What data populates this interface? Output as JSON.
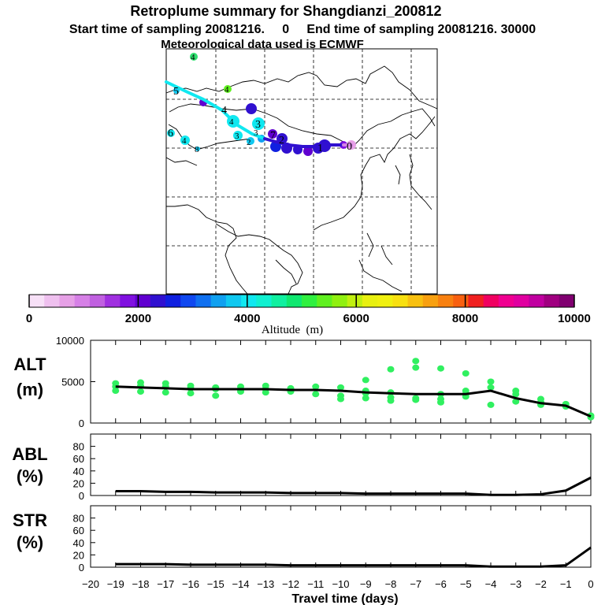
{
  "header": {
    "title": "Retroplume summary for Shangdianzi_200812",
    "sampling_line": "Start time of sampling 20081216.     0     End time of sampling 20081216. 30000",
    "met_line": "Meteorological data used is ECMWF"
  },
  "colorbar": {
    "label": "Altitude  (m)",
    "ticks": [
      "0",
      "2000",
      "4000",
      "6000",
      "8000",
      "10000"
    ],
    "range": [
      0,
      10000
    ],
    "colors": [
      "#f7e0f7",
      "#efc0ef",
      "#e6a0e6",
      "#d680e6",
      "#c060e0",
      "#a030e0",
      "#8010e0",
      "#6000d0",
      "#3010d0",
      "#1020e0",
      "#1048f0",
      "#1070f0",
      "#10a0f0",
      "#10c8f0",
      "#10e8f0",
      "#10f0d0",
      "#10f0a0",
      "#10e870",
      "#30f040",
      "#60f020",
      "#90f010",
      "#c0f010",
      "#e8f010",
      "#f0f010",
      "#f8e010",
      "#f8c010",
      "#f8a010",
      "#f88010",
      "#f86010",
      "#f02020",
      "#f00060",
      "#f00090",
      "#e000a0",
      "#c000a0",
      "#a00080",
      "#800070"
    ]
  },
  "map": {
    "trajectory_labels": [
      "0",
      "1",
      "2",
      "3",
      "4",
      "5",
      "6",
      "7",
      "8"
    ]
  },
  "chart_data": [
    {
      "type": "scatter",
      "name": "ALT",
      "ylabel": "ALT\n(m)",
      "ylabel_lines": [
        "ALT",
        "(m)"
      ],
      "ylim": [
        0,
        10000
      ],
      "yticks": [
        "10000",
        "5000",
        "0"
      ],
      "ytick_values": [
        10000,
        5000,
        0
      ],
      "xlim": [
        -20,
        0
      ],
      "mean_line": {
        "x": [
          -19,
          -18,
          -17,
          -16,
          -15,
          -14,
          -13,
          -12,
          -11,
          -10,
          -9,
          -8,
          -7,
          -6,
          -5,
          -4,
          -3,
          -2,
          -1,
          0
        ],
        "y": [
          4400,
          4300,
          4200,
          4100,
          4100,
          4100,
          4100,
          4000,
          4000,
          3900,
          3700,
          3600,
          3500,
          3500,
          3500,
          3900,
          3000,
          2400,
          2100,
          800
        ]
      },
      "points": {
        "x": [
          -19,
          -19,
          -19,
          -18,
          -18,
          -18,
          -17,
          -17,
          -17,
          -16,
          -16,
          -16,
          -15,
          -15,
          -15,
          -14,
          -14,
          -14,
          -13,
          -13,
          -13,
          -12,
          -12,
          -11,
          -11,
          -10,
          -10,
          -10,
          -9,
          -9,
          -9,
          -9,
          -8,
          -8,
          -8,
          -8,
          -7,
          -7,
          -7,
          -7,
          -6,
          -6,
          -6,
          -6,
          -5,
          -5,
          -5,
          -5,
          -4,
          -4,
          -4,
          -3,
          -3,
          -3,
          -2,
          -2,
          -2,
          -1,
          -1,
          0,
          0
        ],
        "y": [
          4800,
          4400,
          3900,
          4900,
          4500,
          3800,
          4800,
          4400,
          3700,
          4500,
          4200,
          3600,
          4300,
          4100,
          3300,
          4400,
          4000,
          3800,
          4500,
          4100,
          3700,
          4200,
          3800,
          4400,
          3500,
          4300,
          3300,
          2900,
          5200,
          3900,
          3600,
          3000,
          6500,
          3700,
          3100,
          2700,
          7500,
          6700,
          3000,
          2800,
          6600,
          3500,
          2900,
          2500,
          6000,
          3900,
          3500,
          3200,
          5000,
          4300,
          2200,
          3900,
          3500,
          2600,
          2900,
          2500,
          2200,
          2300,
          2000,
          900,
          700
        ]
      }
    },
    {
      "type": "line",
      "name": "ABL",
      "ylabel": "ABL\n(%)",
      "ylabel_lines": [
        "ABL",
        "(%)"
      ],
      "ylim": [
        0,
        100
      ],
      "yticks": [
        "80",
        "60",
        "40",
        "20",
        "0"
      ],
      "ytick_values": [
        80,
        60,
        40,
        20,
        0
      ],
      "xlim": [
        -20,
        0
      ],
      "x": [
        -19,
        -18,
        -17,
        -16,
        -15,
        -14,
        -13,
        -12,
        -11,
        -10,
        -9,
        -8,
        -7,
        -6,
        -5,
        -4,
        -3,
        -2,
        -1,
        0
      ],
      "y": [
        7,
        7,
        6,
        6,
        5,
        5,
        5,
        4,
        4,
        4,
        3,
        3,
        3,
        3,
        3,
        1,
        1,
        2,
        8,
        29
      ]
    },
    {
      "type": "line",
      "name": "STR",
      "ylabel": "STR\n(%)",
      "ylabel_lines": [
        "STR",
        "(%)"
      ],
      "ylim": [
        0,
        100
      ],
      "yticks": [
        "80",
        "60",
        "40",
        "20",
        "0"
      ],
      "ytick_values": [
        80,
        60,
        40,
        20,
        0
      ],
      "xlim": [
        -20,
        0
      ],
      "xlabel": "Travel time (days)",
      "xticks": [
        "−20",
        "−19",
        "−18",
        "−17",
        "−16",
        "−15",
        "−14",
        "−13",
        "−12",
        "−11",
        "−10",
        "−9",
        "−8",
        "−7",
        "−6",
        "−5",
        "−4",
        "−3",
        "−2",
        "−1",
        "0"
      ],
      "xtick_values": [
        -20,
        -19,
        -18,
        -17,
        -16,
        -15,
        -14,
        -13,
        -12,
        -11,
        -10,
        -9,
        -8,
        -7,
        -6,
        -5,
        -4,
        -3,
        -2,
        -1,
        0
      ],
      "x": [
        -19,
        -18,
        -17,
        -16,
        -15,
        -14,
        -13,
        -12,
        -11,
        -10,
        -9,
        -8,
        -7,
        -6,
        -5,
        -4,
        -3,
        -2,
        -1,
        0
      ],
      "y": [
        5,
        5,
        5,
        4,
        4,
        4,
        4,
        3,
        3,
        3,
        3,
        3,
        3,
        3,
        3,
        1,
        1,
        1,
        3,
        32
      ]
    }
  ]
}
